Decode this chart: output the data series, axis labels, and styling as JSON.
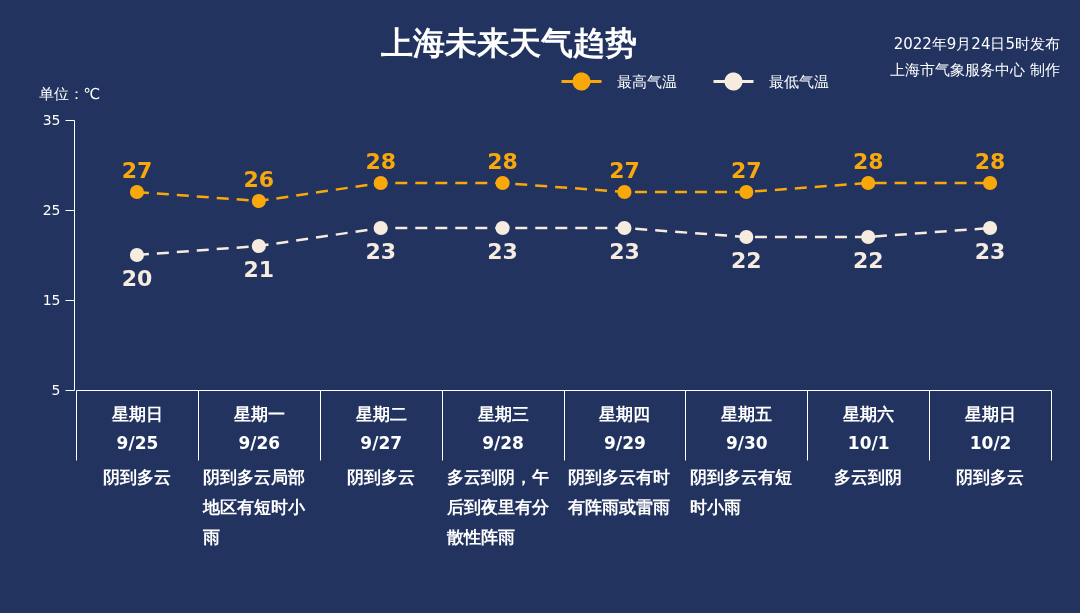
{
  "chart_data": {
    "type": "line",
    "title": "上海未来天气趋势",
    "ylabel": "单位：℃",
    "categories": [
      "星期日\n9/25",
      "星期一\n9/26",
      "星期二\n9/27",
      "星期三\n9/28",
      "星期四\n9/29",
      "星期五\n9/30",
      "星期六\n10/1",
      "星期日\n10/2"
    ],
    "series": [
      {
        "name": "最高气温",
        "color": "#f9a80c",
        "values": [
          27,
          26,
          28,
          28,
          27,
          27,
          28,
          28
        ]
      },
      {
        "name": "最低气温",
        "color": "#f6ebdf",
        "values": [
          20,
          21,
          23,
          23,
          23,
          22,
          22,
          23
        ]
      }
    ],
    "ylim": [
      5,
      35
    ],
    "yticks": [
      5,
      15,
      25,
      35
    ],
    "marker": "circle",
    "line_style": "dashed",
    "data_labels": true,
    "legend": "top",
    "annotations": [
      "2022年9月24日5时发布",
      "上海市气象服务中心 制作",
      "阴到多云",
      "阴到多云局部地区有短时小雨",
      "阴到多云",
      "多云到阴，午后到夜里有分散性阵雨",
      "阴到多云有时有阵雨或雷雨",
      "阴到多云有短时小雨",
      "多云到阴",
      "阴到多云"
    ]
  }
}
